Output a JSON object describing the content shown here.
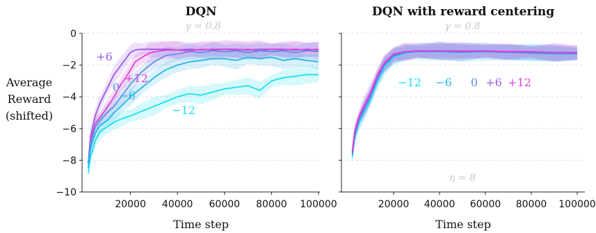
{
  "chart_data": [
    {
      "type": "line",
      "title": "DQN",
      "xlabel": "Time step",
      "ylabel": [
        "Average",
        "Reward",
        "(shifted)"
      ],
      "annotation": "γ = 0.8",
      "xlim": [
        0,
        100000
      ],
      "ylim": [
        -10,
        0
      ],
      "xticks": [
        20000,
        40000,
        60000,
        80000,
        100000
      ],
      "yticks": [
        0,
        -2,
        -4,
        -6,
        -8,
        -10
      ],
      "grid": "horizontal dashed",
      "series": [
        {
          "name": "+6",
          "color": "#9b59e6",
          "x": [
            2000,
            3000,
            5000,
            7000,
            10000,
            13000,
            16000,
            18000,
            20000,
            22000,
            25000,
            28000,
            32000,
            36000,
            40000,
            45000,
            50000,
            55000,
            60000,
            65000,
            70000,
            75000,
            80000,
            85000,
            90000,
            95000,
            100000
          ],
          "y": [
            -8.2,
            -6.5,
            -5.2,
            -4.4,
            -3.5,
            -2.6,
            -2.0,
            -1.6,
            -1.2,
            -1.05,
            -1.0,
            -1.0,
            -1.0,
            -1.0,
            -1.05,
            -1.0,
            -1.05,
            -1.0,
            -1.0,
            -1.0,
            -1.05,
            -1.0,
            -1.0,
            -1.0,
            -1.05,
            -1.0,
            -1.05
          ]
        },
        {
          "name": "+12",
          "color": "#e040d8",
          "x": [
            2000,
            3000,
            5000,
            7000,
            10000,
            13000,
            16000,
            18000,
            20000,
            22000,
            25000,
            28000,
            32000,
            36000,
            40000,
            45000,
            50000,
            55000,
            60000,
            65000,
            70000,
            75000,
            80000,
            85000,
            90000,
            95000,
            100000
          ],
          "y": [
            -8.2,
            -6.8,
            -5.7,
            -5.3,
            -4.7,
            -4.0,
            -3.2,
            -2.8,
            -2.3,
            -1.8,
            -1.5,
            -1.25,
            -1.1,
            -1.05,
            -1.05,
            -1.1,
            -1.0,
            -1.05,
            -1.0,
            -1.05,
            -1.0,
            -1.1,
            -1.0,
            -1.05,
            -1.0,
            -1.05,
            -1.0
          ]
        },
        {
          "name": "0",
          "color": "#5a8fe6",
          "x": [
            2000,
            3000,
            5000,
            7000,
            10000,
            13000,
            16000,
            20000,
            25000,
            30000,
            35000,
            40000,
            45000,
            50000,
            55000,
            60000,
            65000,
            70000,
            75000,
            80000,
            85000,
            90000,
            95000,
            100000
          ],
          "y": [
            -8.2,
            -7.0,
            -5.9,
            -5.5,
            -5.0,
            -4.6,
            -4.0,
            -3.2,
            -2.4,
            -1.8,
            -1.4,
            -1.3,
            -1.15,
            -1.2,
            -1.1,
            -1.15,
            -1.1,
            -1.2,
            -1.1,
            -1.15,
            -1.1,
            -1.2,
            -1.1,
            -1.15
          ]
        },
        {
          "name": "−6",
          "color": "#28b4e8",
          "x": [
            2000,
            3000,
            5000,
            7000,
            10000,
            13000,
            16000,
            20000,
            25000,
            30000,
            35000,
            40000,
            45000,
            50000,
            55000,
            60000,
            65000,
            70000,
            75000,
            80000,
            85000,
            90000,
            95000,
            100000
          ],
          "y": [
            -8.5,
            -7.3,
            -6.3,
            -5.8,
            -5.5,
            -5.0,
            -4.6,
            -4.0,
            -3.4,
            -2.8,
            -2.3,
            -2.0,
            -1.8,
            -1.7,
            -1.6,
            -1.6,
            -1.7,
            -1.5,
            -1.6,
            -1.5,
            -1.7,
            -1.6,
            -1.7,
            -1.8
          ]
        },
        {
          "name": "−12",
          "color": "#19e0f0",
          "x": [
            2000,
            3000,
            5000,
            7000,
            10000,
            13000,
            16000,
            20000,
            25000,
            30000,
            35000,
            40000,
            45000,
            50000,
            55000,
            60000,
            65000,
            70000,
            75000,
            80000,
            85000,
            90000,
            95000,
            100000
          ],
          "y": [
            -8.8,
            -7.8,
            -6.8,
            -6.2,
            -5.9,
            -5.6,
            -5.4,
            -5.2,
            -4.9,
            -4.6,
            -4.3,
            -4.0,
            -3.8,
            -3.9,
            -3.7,
            -3.5,
            -3.4,
            -3.3,
            -3.6,
            -3.0,
            -2.8,
            -2.7,
            -2.6,
            -2.6
          ]
        }
      ]
    },
    {
      "type": "line",
      "title": "DQN with reward centering",
      "xlabel": "Time step",
      "annotation_top": "γ = 0.8",
      "annotation_bottom": "η = 8",
      "xlim": [
        0,
        100000
      ],
      "ylim": [
        -10,
        0
      ],
      "xticks": [
        20000,
        40000,
        60000,
        80000,
        100000
      ],
      "grid": "horizontal dashed",
      "series": [
        {
          "name": "−12",
          "color": "#19e0f0",
          "x": [
            2000,
            3000,
            5000,
            7000,
            10000,
            13000,
            16000,
            20000,
            25000,
            30000,
            40000,
            50000,
            60000,
            70000,
            80000,
            90000,
            100000
          ],
          "y": [
            -7.8,
            -6.6,
            -5.6,
            -5.0,
            -4.1,
            -3.0,
            -2.1,
            -1.5,
            -1.25,
            -1.15,
            -1.15,
            -1.2,
            -1.15,
            -1.2,
            -1.2,
            -1.25,
            -1.3
          ]
        },
        {
          "name": "−6",
          "color": "#28b4e8",
          "x": [
            2000,
            3000,
            5000,
            7000,
            10000,
            13000,
            16000,
            20000,
            25000,
            30000,
            40000,
            50000,
            60000,
            70000,
            80000,
            90000,
            100000
          ],
          "y": [
            -7.7,
            -6.5,
            -5.5,
            -4.9,
            -4.0,
            -2.9,
            -2.0,
            -1.45,
            -1.2,
            -1.15,
            -1.15,
            -1.2,
            -1.15,
            -1.2,
            -1.25,
            -1.3,
            -1.3
          ]
        },
        {
          "name": "0",
          "color": "#5a8fe6",
          "x": [
            2000,
            3000,
            5000,
            7000,
            10000,
            13000,
            16000,
            20000,
            25000,
            30000,
            40000,
            50000,
            60000,
            70000,
            80000,
            90000,
            100000
          ],
          "y": [
            -7.6,
            -6.4,
            -5.4,
            -4.8,
            -3.9,
            -2.8,
            -1.95,
            -1.4,
            -1.2,
            -1.15,
            -1.1,
            -1.15,
            -1.15,
            -1.2,
            -1.2,
            -1.25,
            -1.25
          ]
        },
        {
          "name": "+6",
          "color": "#9b59e6",
          "x": [
            2000,
            3000,
            5000,
            7000,
            10000,
            13000,
            16000,
            20000,
            25000,
            30000,
            40000,
            50000,
            60000,
            70000,
            80000,
            90000,
            100000
          ],
          "y": [
            -7.5,
            -6.3,
            -5.3,
            -4.7,
            -3.8,
            -2.7,
            -1.9,
            -1.35,
            -1.15,
            -1.1,
            -1.1,
            -1.15,
            -1.1,
            -1.15,
            -1.2,
            -1.2,
            -1.25
          ]
        },
        {
          "name": "+12",
          "color": "#e040d8",
          "x": [
            2000,
            3000,
            5000,
            7000,
            10000,
            13000,
            16000,
            20000,
            25000,
            30000,
            40000,
            50000,
            60000,
            70000,
            80000,
            90000,
            100000
          ],
          "y": [
            -7.4,
            -6.2,
            -5.2,
            -4.6,
            -3.7,
            -2.6,
            -1.85,
            -1.3,
            -1.15,
            -1.1,
            -1.1,
            -1.1,
            -1.1,
            -1.15,
            -1.15,
            -1.2,
            -1.2
          ]
        }
      ]
    }
  ]
}
